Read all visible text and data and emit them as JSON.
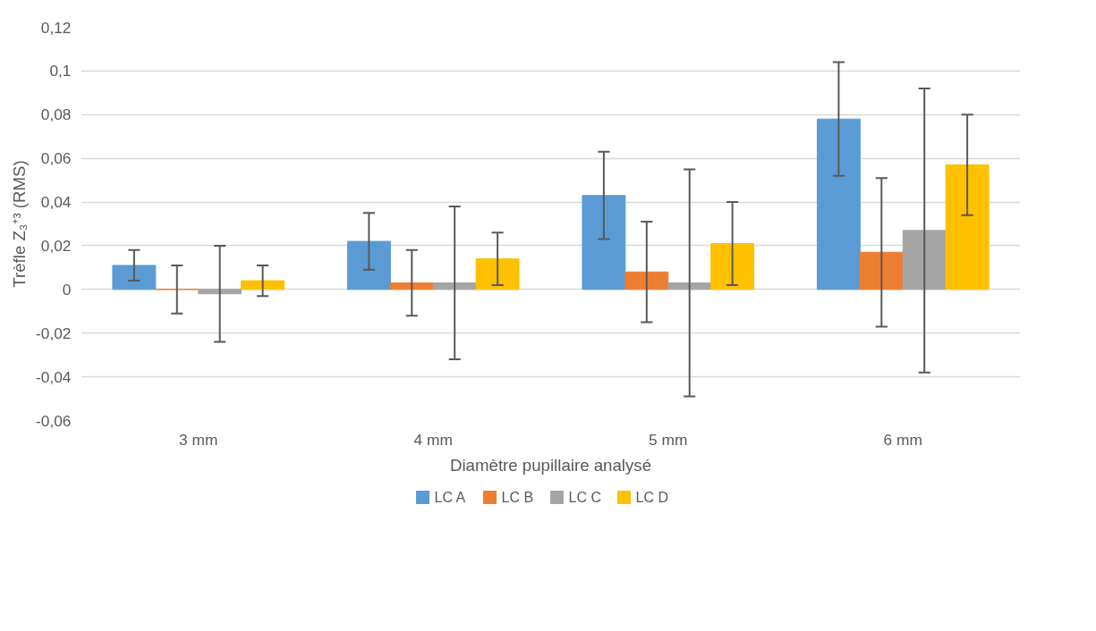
{
  "chart_data": {
    "type": "bar",
    "xlabel": "Diamètre pupillaire analysé",
    "ylabel": "Trèfle Z₃⁺³ (RMS)",
    "categories": [
      "3 mm",
      "4 mm",
      "5 mm",
      "6 mm"
    ],
    "series": [
      {
        "name": "LC A",
        "color": "#5b9bd5",
        "values": [
          0.011,
          0.022,
          0.043,
          0.078
        ],
        "errors": [
          [
            0.004,
            0.018
          ],
          [
            0.009,
            0.035
          ],
          [
            0.023,
            0.063
          ],
          [
            0.052,
            0.104
          ]
        ]
      },
      {
        "name": "LC B",
        "color": "#ed7d31",
        "values": [
          0,
          0.003,
          0.008,
          0.017
        ],
        "errors": [
          [
            -0.011,
            0.011
          ],
          [
            -0.012,
            0.018
          ],
          [
            -0.015,
            0.031
          ],
          [
            -0.017,
            0.051
          ]
        ]
      },
      {
        "name": "LC C",
        "color": "#a5a5a5",
        "values": [
          -0.002,
          0.003,
          0.003,
          0.027
        ],
        "errors": [
          [
            -0.024,
            0.02
          ],
          [
            -0.032,
            0.038
          ],
          [
            -0.049,
            0.055
          ],
          [
            -0.038,
            0.092
          ]
        ]
      },
      {
        "name": "LC D",
        "color": "#ffc000",
        "values": [
          0.004,
          0.014,
          0.021,
          0.057
        ],
        "errors": [
          [
            -0.003,
            0.011
          ],
          [
            0.002,
            0.026
          ],
          [
            0.002,
            0.04
          ],
          [
            0.034,
            0.08
          ]
        ]
      }
    ],
    "ylim": [
      -0.06,
      0.12
    ],
    "yticks": [
      {
        "value": -0.06,
        "label": "-0,06"
      },
      {
        "value": -0.04,
        "label": "-0,04"
      },
      {
        "value": -0.02,
        "label": "-0,02"
      },
      0,
      {
        "value": 0.02,
        "label": "0,02"
      },
      {
        "value": 0.04,
        "label": "0,04"
      },
      {
        "value": 0.06,
        "label": "0,06"
      },
      {
        "value": 0.08,
        "label": "0,08"
      },
      {
        "value": 0.1,
        "label": "0,1"
      },
      {
        "value": 0.12,
        "label": "0,12"
      }
    ],
    "grid": "y",
    "legend": "bottom"
  }
}
